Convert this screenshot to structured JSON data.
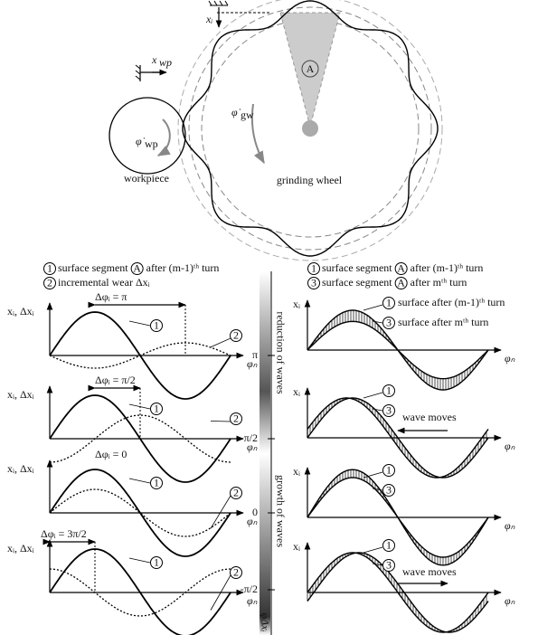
{
  "wheel_diagram": {
    "xi": "xᵢ",
    "xwp": {
      "base": "x",
      "sub": "wp"
    },
    "phi_wp": {
      "base": "φ̇",
      "sub": "wp"
    },
    "phi_gw": {
      "base": "φ̇",
      "sub": "gw"
    },
    "segment": "A",
    "workpiece": "workpiece",
    "wheel": "grinding wheel"
  },
  "left_legend": [
    {
      "marker": "1",
      "text": "surface segment",
      "segment": "A",
      "suffix": "after (m-1)ᵗʰ turn"
    },
    {
      "marker": "2",
      "text": "incremental wear Δxᵢ"
    }
  ],
  "right_legend": [
    {
      "marker": "1",
      "text": "surface segment",
      "segment": "A",
      "suffix": "after (m-1)ᵗʰ turn"
    },
    {
      "marker": "3",
      "text": "surface segment",
      "segment": "A",
      "suffix": "after mᵗʰ turn"
    }
  ],
  "phase_axis": {
    "top_label": "reduction of waves",
    "bottom_label": "growth of waves",
    "ticks": [
      "π",
      "π/2",
      "0",
      "-π/2"
    ],
    "axis_label": "φΔxᵢ"
  },
  "left_panels": [
    {
      "y_label": "xᵢ, Δxᵢ",
      "x_label": "φₙ",
      "delta": "Δφᵢ = π",
      "markers": [
        "1",
        "2"
      ]
    },
    {
      "y_label": "xᵢ, Δxᵢ",
      "x_label": "φₙ",
      "delta": "Δφᵢ = π/2",
      "markers": [
        "1",
        "2"
      ]
    },
    {
      "y_label": "xᵢ, Δxᵢ",
      "x_label": "φₙ",
      "delta": "Δφᵢ = 0",
      "markers": [
        "1",
        "2"
      ]
    },
    {
      "y_label": "xᵢ, Δxᵢ",
      "x_label": "φₙ",
      "delta": "Δφᵢ = 3π/2",
      "markers": [
        "1",
        "2"
      ]
    }
  ],
  "right_panels": [
    {
      "y_label": "xᵢ",
      "x_label": "φₙ",
      "markers": [
        "1",
        "3"
      ],
      "notes": [
        "surface after (m-1)ᵗʰ turn",
        "surface after mᵗʰ turn"
      ]
    },
    {
      "y_label": "xᵢ",
      "x_label": "φₙ",
      "markers": [
        "1",
        "3"
      ],
      "notes": [
        "wave moves"
      ]
    },
    {
      "y_label": "xᵢ",
      "x_label": "φₙ",
      "markers": [
        "1",
        "3"
      ],
      "notes": []
    },
    {
      "y_label": "xᵢ",
      "x_label": "φₙ",
      "markers": [
        "1",
        "3"
      ],
      "notes": [
        "wave moves"
      ]
    }
  ]
}
